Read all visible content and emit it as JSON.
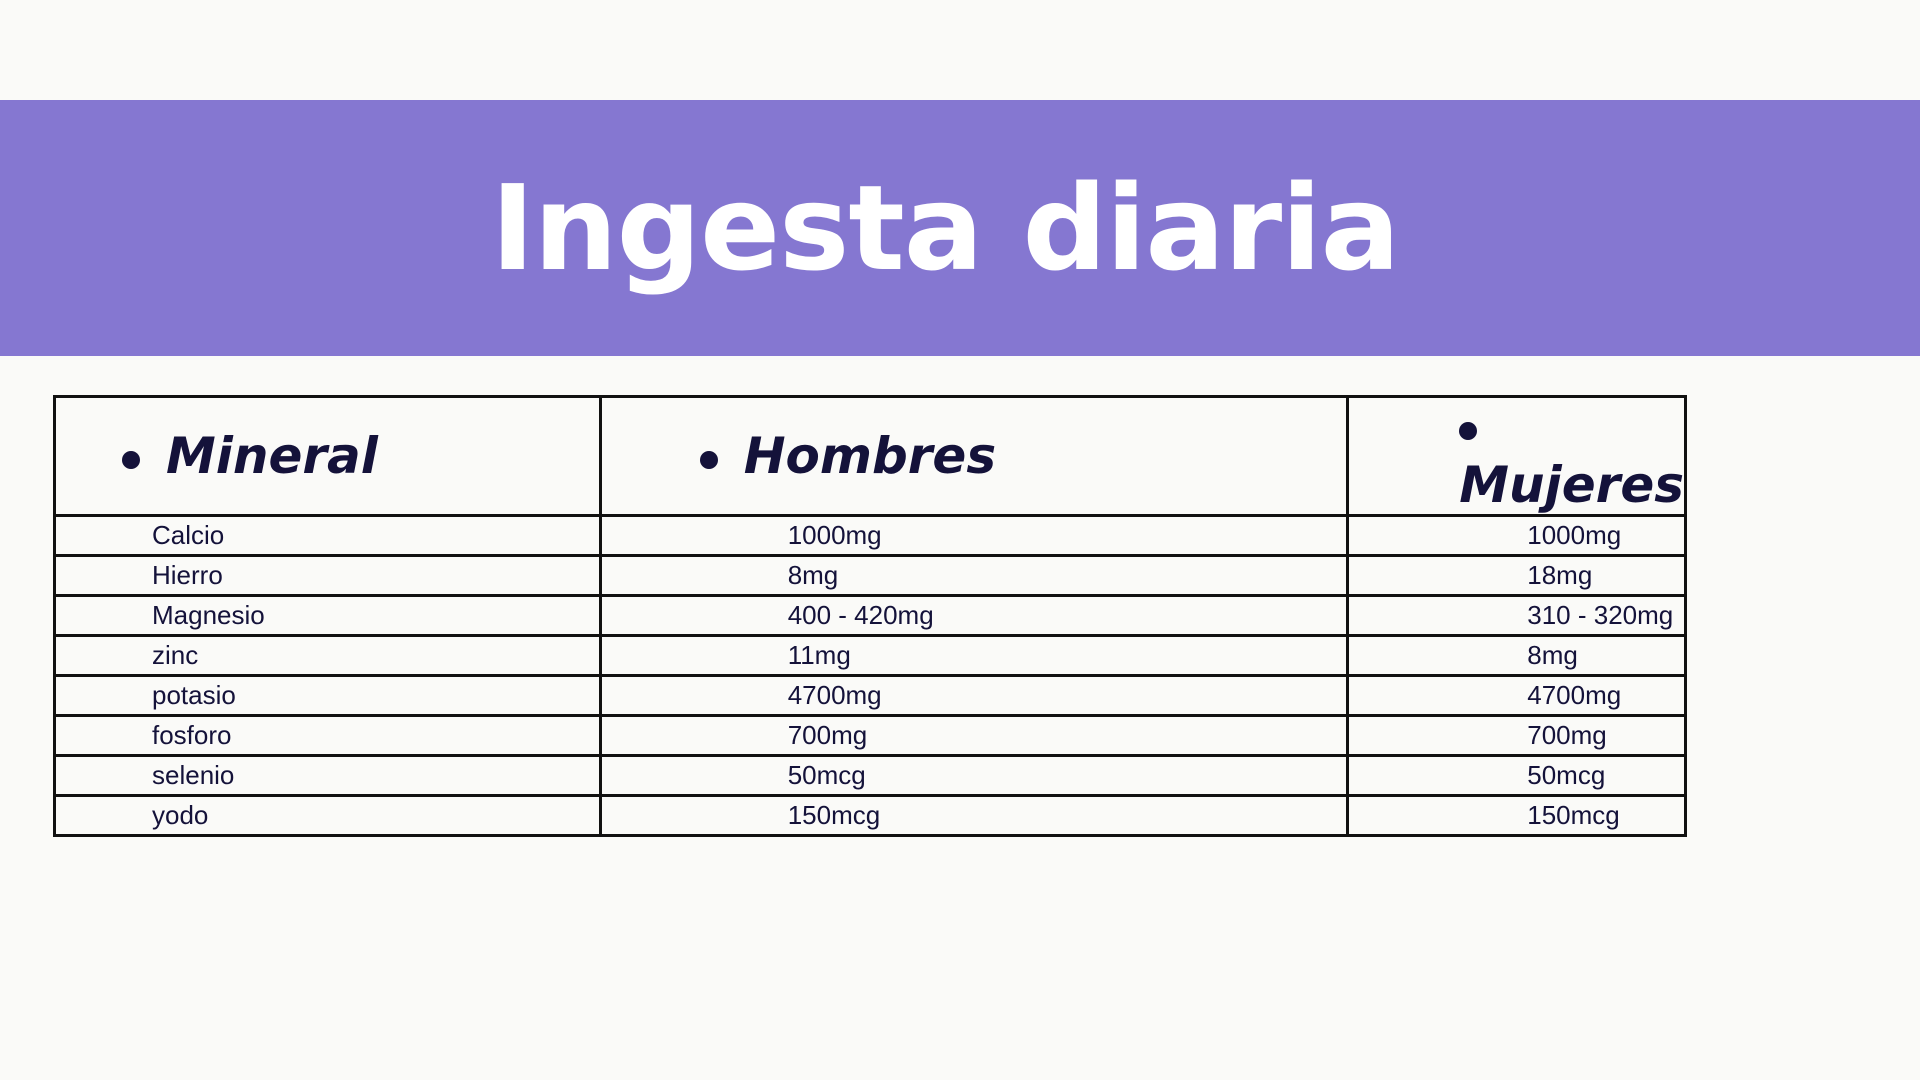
{
  "title": "Ingesta diaria",
  "colors": {
    "banner": "#8577d1",
    "text": "#14123a"
  },
  "table": {
    "headers": [
      "Mineral",
      "Hombres",
      "Mujeres"
    ],
    "rows": [
      [
        "Calcio",
        "1000mg",
        "1000mg"
      ],
      [
        "Hierro",
        "8mg",
        "18mg"
      ],
      [
        "Magnesio",
        "400 - 420mg",
        "310 - 320mg"
      ],
      [
        "zinc",
        "11mg",
        "8mg"
      ],
      [
        "potasio",
        "4700mg",
        "4700mg"
      ],
      [
        "fosforo",
        "700mg",
        "700mg"
      ],
      [
        "selenio",
        "50mcg",
        "50mcg"
      ],
      [
        "yodo",
        "150mcg",
        "150mcg"
      ]
    ]
  }
}
